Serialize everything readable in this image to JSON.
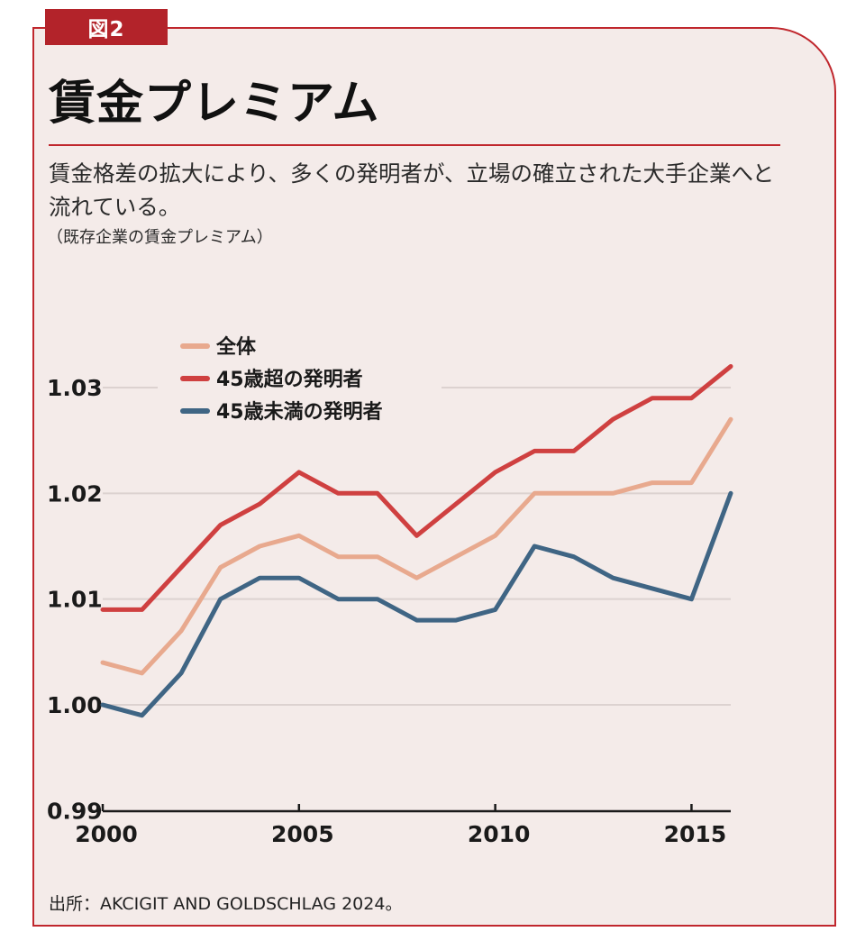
{
  "figure_label": "図2",
  "title": "賃金プレミアム",
  "subtitle": "賃金格差の拡大により、多くの発明者が、立場の確立された大手企業へと流れている。",
  "note": "（既存企業の賃金プレミアム）",
  "source": "出所：AKCIGIT AND GOLDSCHLAG 2024。",
  "colors": {
    "accent": "#c0272d",
    "panel_bg": "#f4ebe9",
    "series": [
      "#e8a98e",
      "#cf4040",
      "#3f6584"
    ]
  },
  "chart_data": {
    "type": "line",
    "title": "",
    "xlabel": "",
    "ylabel": "",
    "x": [
      2000,
      2001,
      2002,
      2003,
      2004,
      2005,
      2006,
      2007,
      2008,
      2009,
      2010,
      2011,
      2012,
      2013,
      2014,
      2015,
      2016
    ],
    "xlim": [
      2000,
      2016
    ],
    "ylim": [
      0.99,
      1.035
    ],
    "x_ticks": [
      2000,
      2005,
      2010,
      2015
    ],
    "x_tick_labels": [
      "2000",
      "2005",
      "2010",
      "2015"
    ],
    "y_ticks": [
      0.99,
      1.0,
      1.01,
      1.02,
      1.03
    ],
    "y_tick_labels": [
      "0.99",
      "1.00",
      "1.01",
      "1.02",
      "1.03"
    ],
    "grid": true,
    "legend_position": "top-left",
    "series": [
      {
        "name": "全体",
        "color": "#e8a98e",
        "values": [
          1.004,
          1.003,
          1.007,
          1.013,
          1.015,
          1.016,
          1.014,
          1.014,
          1.012,
          1.014,
          1.016,
          1.02,
          1.02,
          1.02,
          1.021,
          1.021,
          1.027
        ]
      },
      {
        "name": "45歳超の発明者",
        "color": "#cf4040",
        "values": [
          1.009,
          1.009,
          1.013,
          1.017,
          1.019,
          1.022,
          1.02,
          1.02,
          1.016,
          1.019,
          1.022,
          1.024,
          1.024,
          1.027,
          1.029,
          1.029,
          1.032
        ]
      },
      {
        "name": "45歳未満の発明者",
        "color": "#3f6584",
        "values": [
          1.0,
          0.999,
          1.003,
          1.01,
          1.012,
          1.012,
          1.01,
          1.01,
          1.008,
          1.008,
          1.009,
          1.015,
          1.014,
          1.012,
          1.011,
          1.01,
          1.02
        ]
      }
    ]
  }
}
